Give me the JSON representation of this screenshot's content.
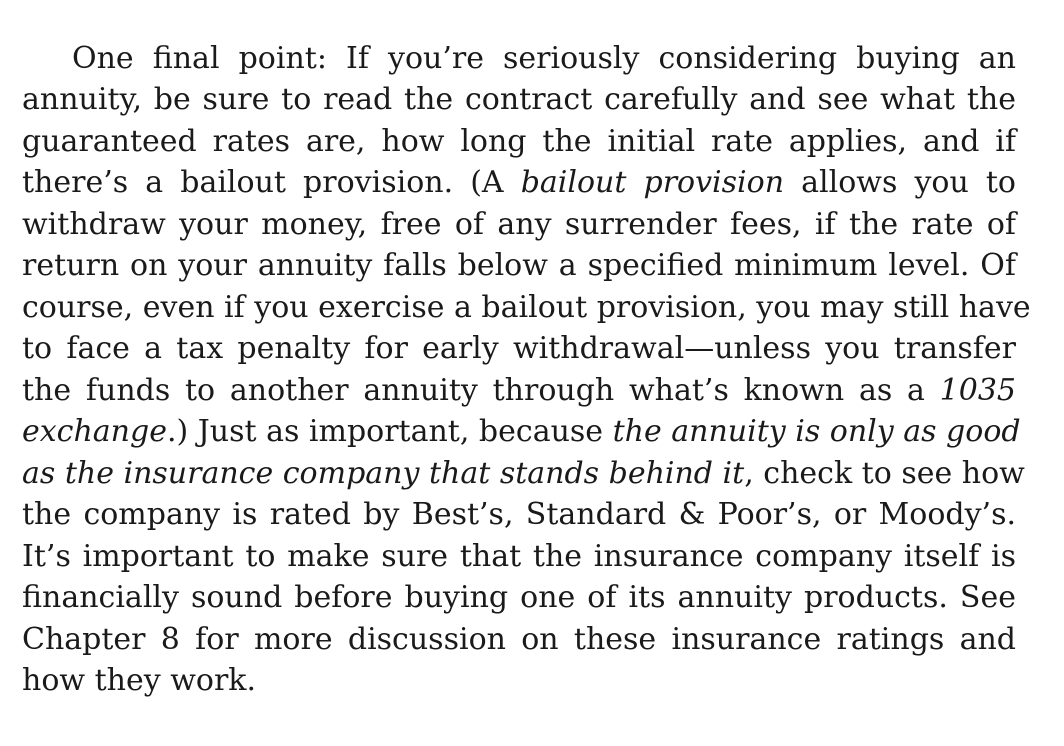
{
  "paragraph": {
    "lines": [
      [
        {
          "text": "One final point: If you’re seriously considering buying an"
        }
      ],
      [
        {
          "text": "annuity, be sure to read the contract carefully and see what the"
        }
      ],
      [
        {
          "text": "guaranteed rates are, how long the initial rate applies, and if"
        }
      ],
      [
        {
          "text": "there’s a bailout provision. (A "
        },
        {
          "text": "bailout provision",
          "italic": true
        },
        {
          "text": " allows you to"
        }
      ],
      [
        {
          "text": "withdraw your money, free of any surrender fees, if the rate of"
        }
      ],
      [
        {
          "text": "return on your annuity falls below a specified minimum level. Of"
        }
      ],
      [
        {
          "text": "course, even if you exercise a bailout provision, you may still have"
        }
      ],
      [
        {
          "text": "to face a tax penalty for early withdrawal—unless you transfer"
        }
      ],
      [
        {
          "text": "the funds to another annuity through what’s known as a "
        },
        {
          "text": "1035",
          "italic": true
        }
      ],
      [
        {
          "text": "exchange",
          "italic": true
        },
        {
          "text": ".) Just as important, because "
        },
        {
          "text": "the annuity is only as good",
          "italic": true
        }
      ],
      [
        {
          "text": "as the insurance company that stands behind it",
          "italic": true
        },
        {
          "text": ", check to see how"
        }
      ],
      [
        {
          "text": "the company is rated by Best’s, Standard & Poor’s, or Moody’s."
        }
      ],
      [
        {
          "text": "It’s important to make sure that the insurance company itself is"
        }
      ],
      [
        {
          "text": "financially sound before buying one of its annuity products. See"
        }
      ],
      [
        {
          "text": "Chapter 8 for more discussion on these insurance ratings and"
        }
      ],
      [
        {
          "text": "how they work."
        }
      ]
    ]
  }
}
